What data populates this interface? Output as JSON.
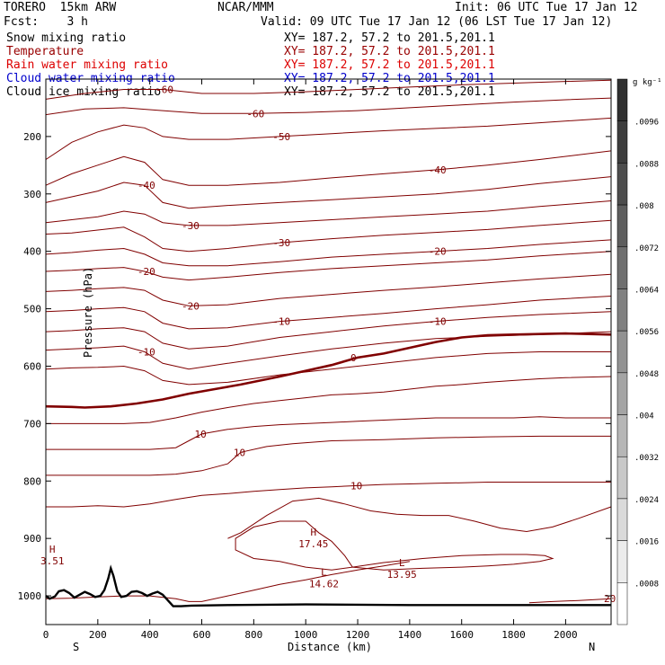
{
  "header": {
    "model": "TORERO  15km ARW",
    "center": "NCAR/MMM",
    "init": "Init: 06 UTC Tue 17 Jan 12",
    "fcst": "Fcst:    3 h",
    "valid": "Valid: 09 UTC Tue 17 Jan 12 (06 LST Tue 17 Jan 12)"
  },
  "fields": [
    {
      "name": "Snow mixing ratio",
      "xy": "XY= 187.2, 57.2 to 201.5,201.1",
      "color": "#000000"
    },
    {
      "name": "Temperature",
      "xy": "XY= 187.2, 57.2 to 201.5,201.1",
      "color": "#990000"
    },
    {
      "name": "Rain water mixing ratio",
      "xy": "XY= 187.2, 57.2 to 201.5,201.1",
      "color": "#dd0000"
    },
    {
      "name": "Cloud water mixing ratio",
      "xy": "XY= 187.2, 57.2 to 201.5,201.1",
      "color": "#0000cc"
    },
    {
      "name": "Cloud ice mixing ratio",
      "xy": "XY= 187.2, 57.2 to 201.5,201.1",
      "color": "#000000"
    }
  ],
  "chart_data": {
    "type": "line",
    "xlabel": "Distance (km)",
    "ylabel": "Pressure (hPa)",
    "xlim": [
      0,
      2175
    ],
    "ylim": [
      1050,
      100
    ],
    "xticks": [
      0,
      200,
      400,
      600,
      800,
      1000,
      1200,
      1400,
      1600,
      1800,
      2000
    ],
    "yticks": [
      200,
      300,
      400,
      500,
      600,
      700,
      800,
      900,
      1000
    ],
    "endpoints": {
      "left": "S",
      "right": "N"
    },
    "colorbar": {
      "unit": "g kg⁻¹",
      "labels": [
        ".0096",
        ".0088",
        ".008",
        ".0072",
        ".0064",
        ".0056",
        ".0048",
        ".004",
        ".0032",
        ".0024",
        ".0016",
        ".0008"
      ],
      "shades": [
        "#303030",
        "#3d3d3d",
        "#4d4d4d",
        "#5e5e5e",
        "#6f6f6f",
        "#808080",
        "#929292",
        "#a4a4a4",
        "#b6b6b6",
        "#c8c8c8",
        "#dadada",
        "#ececec",
        "#ffffff"
      ]
    },
    "terrain": {
      "x": [
        0,
        15,
        35,
        50,
        70,
        90,
        110,
        130,
        150,
        170,
        190,
        210,
        225,
        240,
        250,
        260,
        275,
        290,
        310,
        330,
        350,
        370,
        390,
        410,
        430,
        450,
        470,
        490,
        520,
        560,
        700,
        1000,
        1400,
        1800,
        2175
      ],
      "p": [
        1000,
        1005,
        1001,
        992,
        990,
        995,
        1003,
        998,
        993,
        997,
        1002,
        1000,
        990,
        970,
        952,
        965,
        992,
        1002,
        1000,
        993,
        992,
        995,
        1000,
        996,
        993,
        998,
        1008,
        1018,
        1018,
        1017,
        1016,
        1015,
        1016,
        1016,
        1016
      ]
    },
    "isotherms": [
      {
        "label": "-60",
        "x": [
          0,
          150,
          300,
          450,
          600,
          800,
          1000,
          1200,
          1400,
          1600,
          1800,
          2000,
          2175
        ],
        "p": [
          135,
          125,
          118,
          118,
          125,
          125,
          122,
          118,
          114,
          110,
          107,
          104,
          102
        ]
      },
      {
        "label": "-60",
        "x": [
          0,
          150,
          300,
          450,
          600,
          800,
          1000,
          1200,
          1400,
          1600,
          1800,
          2000,
          2175
        ],
        "p": [
          162,
          152,
          150,
          155,
          160,
          160,
          158,
          155,
          150,
          145,
          140,
          136,
          133
        ]
      },
      {
        "label": "-50",
        "x": [
          0,
          100,
          200,
          300,
          380,
          450,
          550,
          700,
          900,
          1100,
          1300,
          1500,
          1700,
          1900,
          2175
        ],
        "p": [
          240,
          210,
          192,
          180,
          185,
          200,
          205,
          205,
          200,
          195,
          190,
          186,
          182,
          176,
          168
        ]
      },
      {
        "label": "-40",
        "x": [
          0,
          100,
          200,
          300,
          380,
          450,
          550,
          700,
          900,
          1100,
          1300,
          1500,
          1700,
          1900,
          2175
        ],
        "p": [
          285,
          265,
          250,
          235,
          245,
          275,
          285,
          285,
          280,
          272,
          265,
          258,
          250,
          240,
          225
        ]
      },
      {
        "label": "-40",
        "x": [
          0,
          100,
          200,
          300,
          380,
          450,
          550,
          700,
          900,
          1100,
          1300,
          1500,
          1700,
          1900,
          2175
        ],
        "p": [
          315,
          305,
          295,
          280,
          285,
          315,
          325,
          320,
          315,
          310,
          305,
          300,
          292,
          282,
          270
        ]
      },
      {
        "label": "-30",
        "x": [
          0,
          100,
          200,
          300,
          380,
          450,
          550,
          700,
          900,
          1100,
          1300,
          1500,
          1700,
          1900,
          2175
        ],
        "p": [
          350,
          345,
          340,
          330,
          335,
          350,
          355,
          355,
          350,
          345,
          340,
          335,
          330,
          322,
          312
        ]
      },
      {
        "label": "-30",
        "x": [
          0,
          100,
          200,
          300,
          380,
          450,
          550,
          700,
          900,
          1100,
          1300,
          1500,
          1700,
          1900,
          2175
        ],
        "p": [
          370,
          368,
          363,
          358,
          375,
          395,
          400,
          395,
          385,
          378,
          372,
          367,
          362,
          355,
          346
        ]
      },
      {
        "label": "-20",
        "x": [
          0,
          100,
          200,
          300,
          380,
          450,
          550,
          700,
          900,
          1100,
          1300,
          1500,
          1700,
          1900,
          2175
        ],
        "p": [
          405,
          402,
          398,
          395,
          405,
          420,
          425,
          425,
          418,
          410,
          405,
          400,
          395,
          388,
          380
        ]
      },
      {
        "label": "-20",
        "x": [
          0,
          100,
          200,
          300,
          380,
          450,
          550,
          700,
          900,
          1100,
          1300,
          1500,
          1700,
          1900,
          2175
        ],
        "p": [
          435,
          433,
          430,
          428,
          435,
          445,
          450,
          445,
          437,
          430,
          425,
          420,
          415,
          408,
          400
        ]
      },
      {
        "label": "-20",
        "x": [
          0,
          100,
          200,
          300,
          380,
          450,
          550,
          700,
          900,
          1100,
          1300,
          1500,
          1700,
          1900,
          2175
        ],
        "p": [
          470,
          468,
          465,
          463,
          468,
          485,
          495,
          493,
          482,
          475,
          468,
          462,
          455,
          448,
          440
        ]
      },
      {
        "label": "-10",
        "x": [
          0,
          100,
          200,
          300,
          380,
          450,
          550,
          700,
          900,
          1100,
          1300,
          1500,
          1700,
          1900,
          2175
        ],
        "p": [
          505,
          503,
          500,
          498,
          505,
          525,
          535,
          533,
          522,
          515,
          508,
          500,
          493,
          485,
          478
        ]
      },
      {
        "label": "-10",
        "x": [
          0,
          100,
          200,
          300,
          380,
          450,
          550,
          700,
          900,
          1100,
          1300,
          1500,
          1700,
          1900,
          2175
        ],
        "p": [
          540,
          538,
          535,
          533,
          540,
          560,
          570,
          565,
          550,
          540,
          530,
          522,
          515,
          510,
          505
        ]
      },
      {
        "label": "-10",
        "x": [
          0,
          100,
          200,
          300,
          380,
          450,
          550,
          700,
          900,
          1100,
          1300,
          1500,
          1700,
          1900,
          2175
        ],
        "p": [
          572,
          570,
          568,
          565,
          575,
          595,
          605,
          595,
          582,
          570,
          560,
          552,
          548,
          545,
          540
        ]
      },
      {
        "label": "",
        "x": [
          0,
          100,
          200,
          300,
          380,
          450,
          550,
          700,
          900,
          1100,
          1300,
          1500,
          1700,
          1900,
          2175
        ],
        "p": [
          605,
          603,
          602,
          600,
          608,
          625,
          632,
          628,
          615,
          605,
          595,
          585,
          578,
          575,
          575
        ]
      },
      {
        "label": "0",
        "bold": true,
        "x": [
          0,
          100,
          150,
          250,
          350,
          450,
          550,
          650,
          750,
          900,
          1000,
          1100,
          1200,
          1300,
          1400,
          1500,
          1600,
          1700,
          1800,
          1900,
          2000,
          2175
        ],
        "p": [
          670,
          671,
          672,
          670,
          665,
          658,
          648,
          640,
          632,
          618,
          608,
          598,
          585,
          578,
          568,
          558,
          550,
          546,
          545,
          544,
          543,
          545
        ]
      },
      {
        "label": "",
        "x": [
          0,
          150,
          300,
          400,
          500,
          600,
          700,
          800,
          900,
          1000,
          1100,
          1200,
          1300,
          1400,
          1500,
          1600,
          1700,
          1800,
          1900,
          2000,
          2175
        ],
        "p": [
          700,
          700,
          700,
          698,
          690,
          680,
          672,
          665,
          660,
          655,
          650,
          648,
          645,
          640,
          635,
          632,
          628,
          625,
          622,
          620,
          618
        ]
      },
      {
        "label": "10",
        "x": [
          0,
          150,
          300,
          400,
          500,
          550,
          600,
          700,
          800,
          900,
          1000,
          1100,
          1200,
          1300,
          1400,
          1500,
          1600,
          1700,
          1800,
          1900,
          2000,
          2175
        ],
        "p": [
          745,
          745,
          745,
          745,
          742,
          730,
          718,
          710,
          705,
          702,
          700,
          698,
          696,
          694,
          692,
          690,
          690,
          690,
          690,
          688,
          690,
          690
        ]
      },
      {
        "label": "10",
        "x": [
          0,
          150,
          300,
          400,
          500,
          600,
          700,
          750,
          850,
          950,
          1100,
          1300,
          1500,
          1700,
          1900,
          2050,
          2175
        ],
        "p": [
          790,
          790,
          790,
          790,
          788,
          782,
          770,
          750,
          740,
          735,
          730,
          728,
          725,
          723,
          722,
          722,
          722
        ]
      },
      {
        "label": "10",
        "x": [
          0,
          100,
          200,
          300,
          400,
          500,
          600,
          700,
          800,
          900,
          1000,
          1100,
          1200,
          1300,
          1400,
          1500,
          1600,
          1700,
          1800,
          1900,
          2000,
          2175
        ],
        "p": [
          845,
          845,
          843,
          845,
          840,
          832,
          825,
          822,
          818,
          815,
          812,
          810,
          808,
          806,
          805,
          804,
          803,
          802,
          802,
          802,
          802,
          802
        ]
      },
      {
        "label": "",
        "x": [
          700,
          750,
          850,
          950,
          1050,
          1150,
          1250,
          1350,
          1450,
          1550,
          1650,
          1750,
          1850,
          1950,
          2050,
          2175
        ],
        "p": [
          900,
          890,
          860,
          835,
          830,
          840,
          852,
          858,
          860,
          860,
          870,
          882,
          888,
          880,
          865,
          845
        ]
      },
      {
        "label": "",
        "x": [
          0,
          100,
          200,
          300,
          400,
          500,
          550,
          600,
          700,
          800,
          900,
          1000,
          1100,
          1200,
          1300,
          1400
        ],
        "p": [
          1005,
          1004,
          1002,
          1000,
          1000,
          1005,
          1010,
          1010,
          1000,
          990,
          980,
          972,
          963,
          955,
          948,
          940
        ]
      },
      {
        "label": "",
        "closed": true,
        "x": [
          730,
          800,
          900,
          1000,
          1050,
          1100,
          1150,
          1180,
          1100,
          1000,
          900,
          800,
          730
        ],
        "p": [
          900,
          880,
          870,
          870,
          890,
          905,
          930,
          950,
          955,
          950,
          940,
          935,
          920
        ]
      },
      {
        "label": "",
        "closed": true,
        "x": [
          1180,
          1300,
          1450,
          1600,
          1750,
          1850,
          1920,
          1950,
          1900,
          1800,
          1700,
          1600,
          1450,
          1300,
          1180
        ],
        "p": [
          950,
          942,
          935,
          930,
          928,
          928,
          930,
          935,
          940,
          945,
          948,
          950,
          952,
          955,
          950
        ]
      },
      {
        "label": "20",
        "x": [
          1860,
          1950,
          2050,
          2175
        ],
        "p": [
          1012,
          1010,
          1008,
          1005
        ]
      }
    ],
    "extrema": [
      {
        "type": "H",
        "value": "3.51",
        "x": 25,
        "p": 925
      },
      {
        "type": "H",
        "value": "17.45",
        "x": 1030,
        "p": 895
      },
      {
        "type": "L",
        "value": "14.62",
        "x": 1070,
        "p": 965
      },
      {
        "type": "L",
        "value": "13.95",
        "x": 1370,
        "p": 948
      }
    ]
  }
}
